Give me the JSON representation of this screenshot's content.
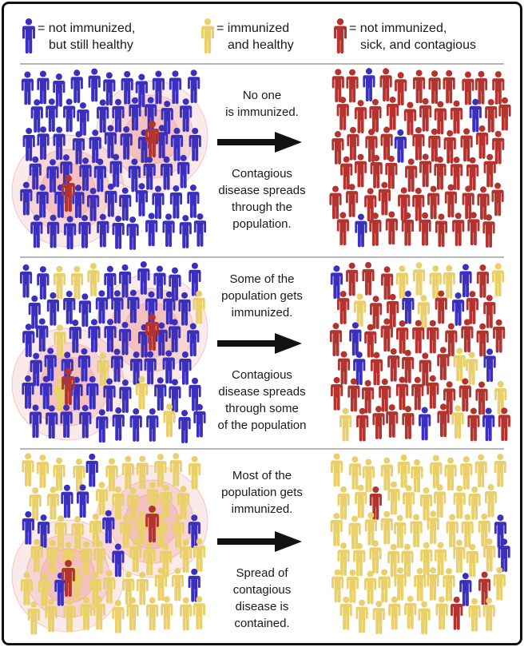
{
  "legend": [
    {
      "key": "not_immunized_healthy",
      "color": "#3a2fbf",
      "line1": "= not immunized,",
      "line2": "but still healthy"
    },
    {
      "key": "immunized_healthy",
      "color": "#ead06a",
      "line1": "= immunized",
      "line2": "and healthy"
    },
    {
      "key": "sick_contagious",
      "color": "#b5332e",
      "line1": "= not immunized,",
      "line2": "sick, and contagious"
    }
  ],
  "colors": {
    "blue": "#3a2fbf",
    "yellow": "#ead06a",
    "red": "#b5332e",
    "halo": "#e88a8a",
    "frame": "#111111",
    "rule": "#b8b8b8"
  },
  "panels": [
    {
      "id": "no-immunization",
      "caption_top": [
        "No one",
        "is immunized."
      ],
      "caption_bottom": [
        "Contagious",
        "disease spreads",
        "through the",
        "population."
      ],
      "before_share": {
        "blue": 0.97,
        "yellow": 0.0,
        "red": 0.03
      },
      "after_share": {
        "blue": 0.08,
        "yellow": 0.0,
        "red": 0.92
      }
    },
    {
      "id": "some-immunization",
      "caption_top": [
        "Some of the",
        "population gets",
        "immunized."
      ],
      "caption_bottom": [
        "Contagious",
        "disease spreads",
        "through some",
        "of the population"
      ],
      "before_share": {
        "blue": 0.82,
        "yellow": 0.15,
        "red": 0.03
      },
      "after_share": {
        "blue": 0.12,
        "yellow": 0.15,
        "red": 0.73
      }
    },
    {
      "id": "most-immunization",
      "caption_top": [
        "Most of the",
        "population gets",
        "immunized."
      ],
      "caption_bottom": [
        "Spread of",
        "contagious",
        "disease is",
        "contained."
      ],
      "before_share": {
        "blue": 0.06,
        "yellow": 0.9,
        "red": 0.04
      },
      "after_share": {
        "blue": 0.06,
        "yellow": 0.88,
        "red": 0.06
      }
    }
  ],
  "arrow_icon": "right-arrow-icon",
  "person_icon": "person-icon"
}
